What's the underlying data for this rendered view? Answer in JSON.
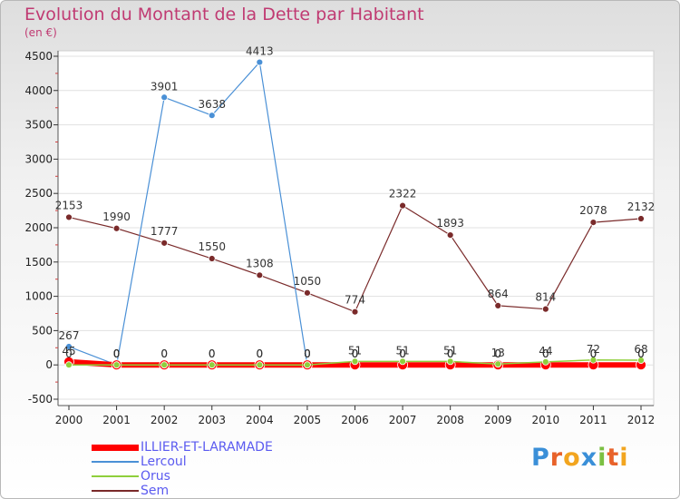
{
  "title": "Evolution du Montant de la Dette par Habitant",
  "subtitle": "(en €)",
  "logo_text": "Proxiti",
  "chart_data": {
    "type": "line",
    "title": "Evolution du Montant de la Dette par Habitant",
    "ylabel": "(en €)",
    "xlabel": "",
    "ylim": [
      -500,
      4500
    ],
    "yticks": [
      -500,
      0,
      500,
      1000,
      1500,
      2000,
      2500,
      3000,
      3500,
      4000,
      4500
    ],
    "categories": [
      "2000",
      "2001",
      "2002",
      "2003",
      "2004",
      "2005",
      "2006",
      "2007",
      "2008",
      "2009",
      "2010",
      "2011",
      "2012"
    ],
    "legend_position": "bottom-left",
    "series": [
      {
        "name": "ILLIER-ET-LARAMADE",
        "color": "#ff0000",
        "values": [
          45,
          0,
          0,
          0,
          0,
          0,
          0,
          0,
          0,
          0,
          0,
          0,
          0
        ],
        "labels": [
          "45",
          "0",
          "0",
          "0",
          "0",
          "0",
          "0",
          "0",
          "0",
          "0",
          "0",
          "0",
          "0"
        ]
      },
      {
        "name": "Lercoul",
        "color": "#4a90d6",
        "values": [
          267,
          0,
          3901,
          3638,
          4413,
          0,
          0,
          0,
          0,
          0,
          0,
          0,
          0
        ],
        "labels": [
          "267",
          "0",
          "3901",
          "3638",
          "4413",
          "0",
          "0",
          "0",
          "0",
          "0",
          "0",
          "0",
          "0"
        ]
      },
      {
        "name": "Orus",
        "color": "#8fcf3c",
        "values": [
          0,
          0,
          0,
          0,
          0,
          0,
          51,
          51,
          51,
          13,
          44,
          72,
          68
        ],
        "labels": [
          "0",
          "0",
          "0",
          "0",
          "0",
          "0",
          "51",
          "51",
          "51",
          "13",
          "44",
          "72",
          "68"
        ]
      },
      {
        "name": "Sem",
        "color": "#7a2a2a",
        "values": [
          2153,
          1990,
          1777,
          1550,
          1308,
          1050,
          774,
          2322,
          1893,
          864,
          814,
          2078,
          2132
        ],
        "labels": [
          "2153",
          "1990",
          "1777",
          "1550",
          "1308",
          "1050",
          "774",
          "2322",
          "1893",
          "864",
          "814",
          "2078",
          "2132"
        ]
      }
    ]
  }
}
